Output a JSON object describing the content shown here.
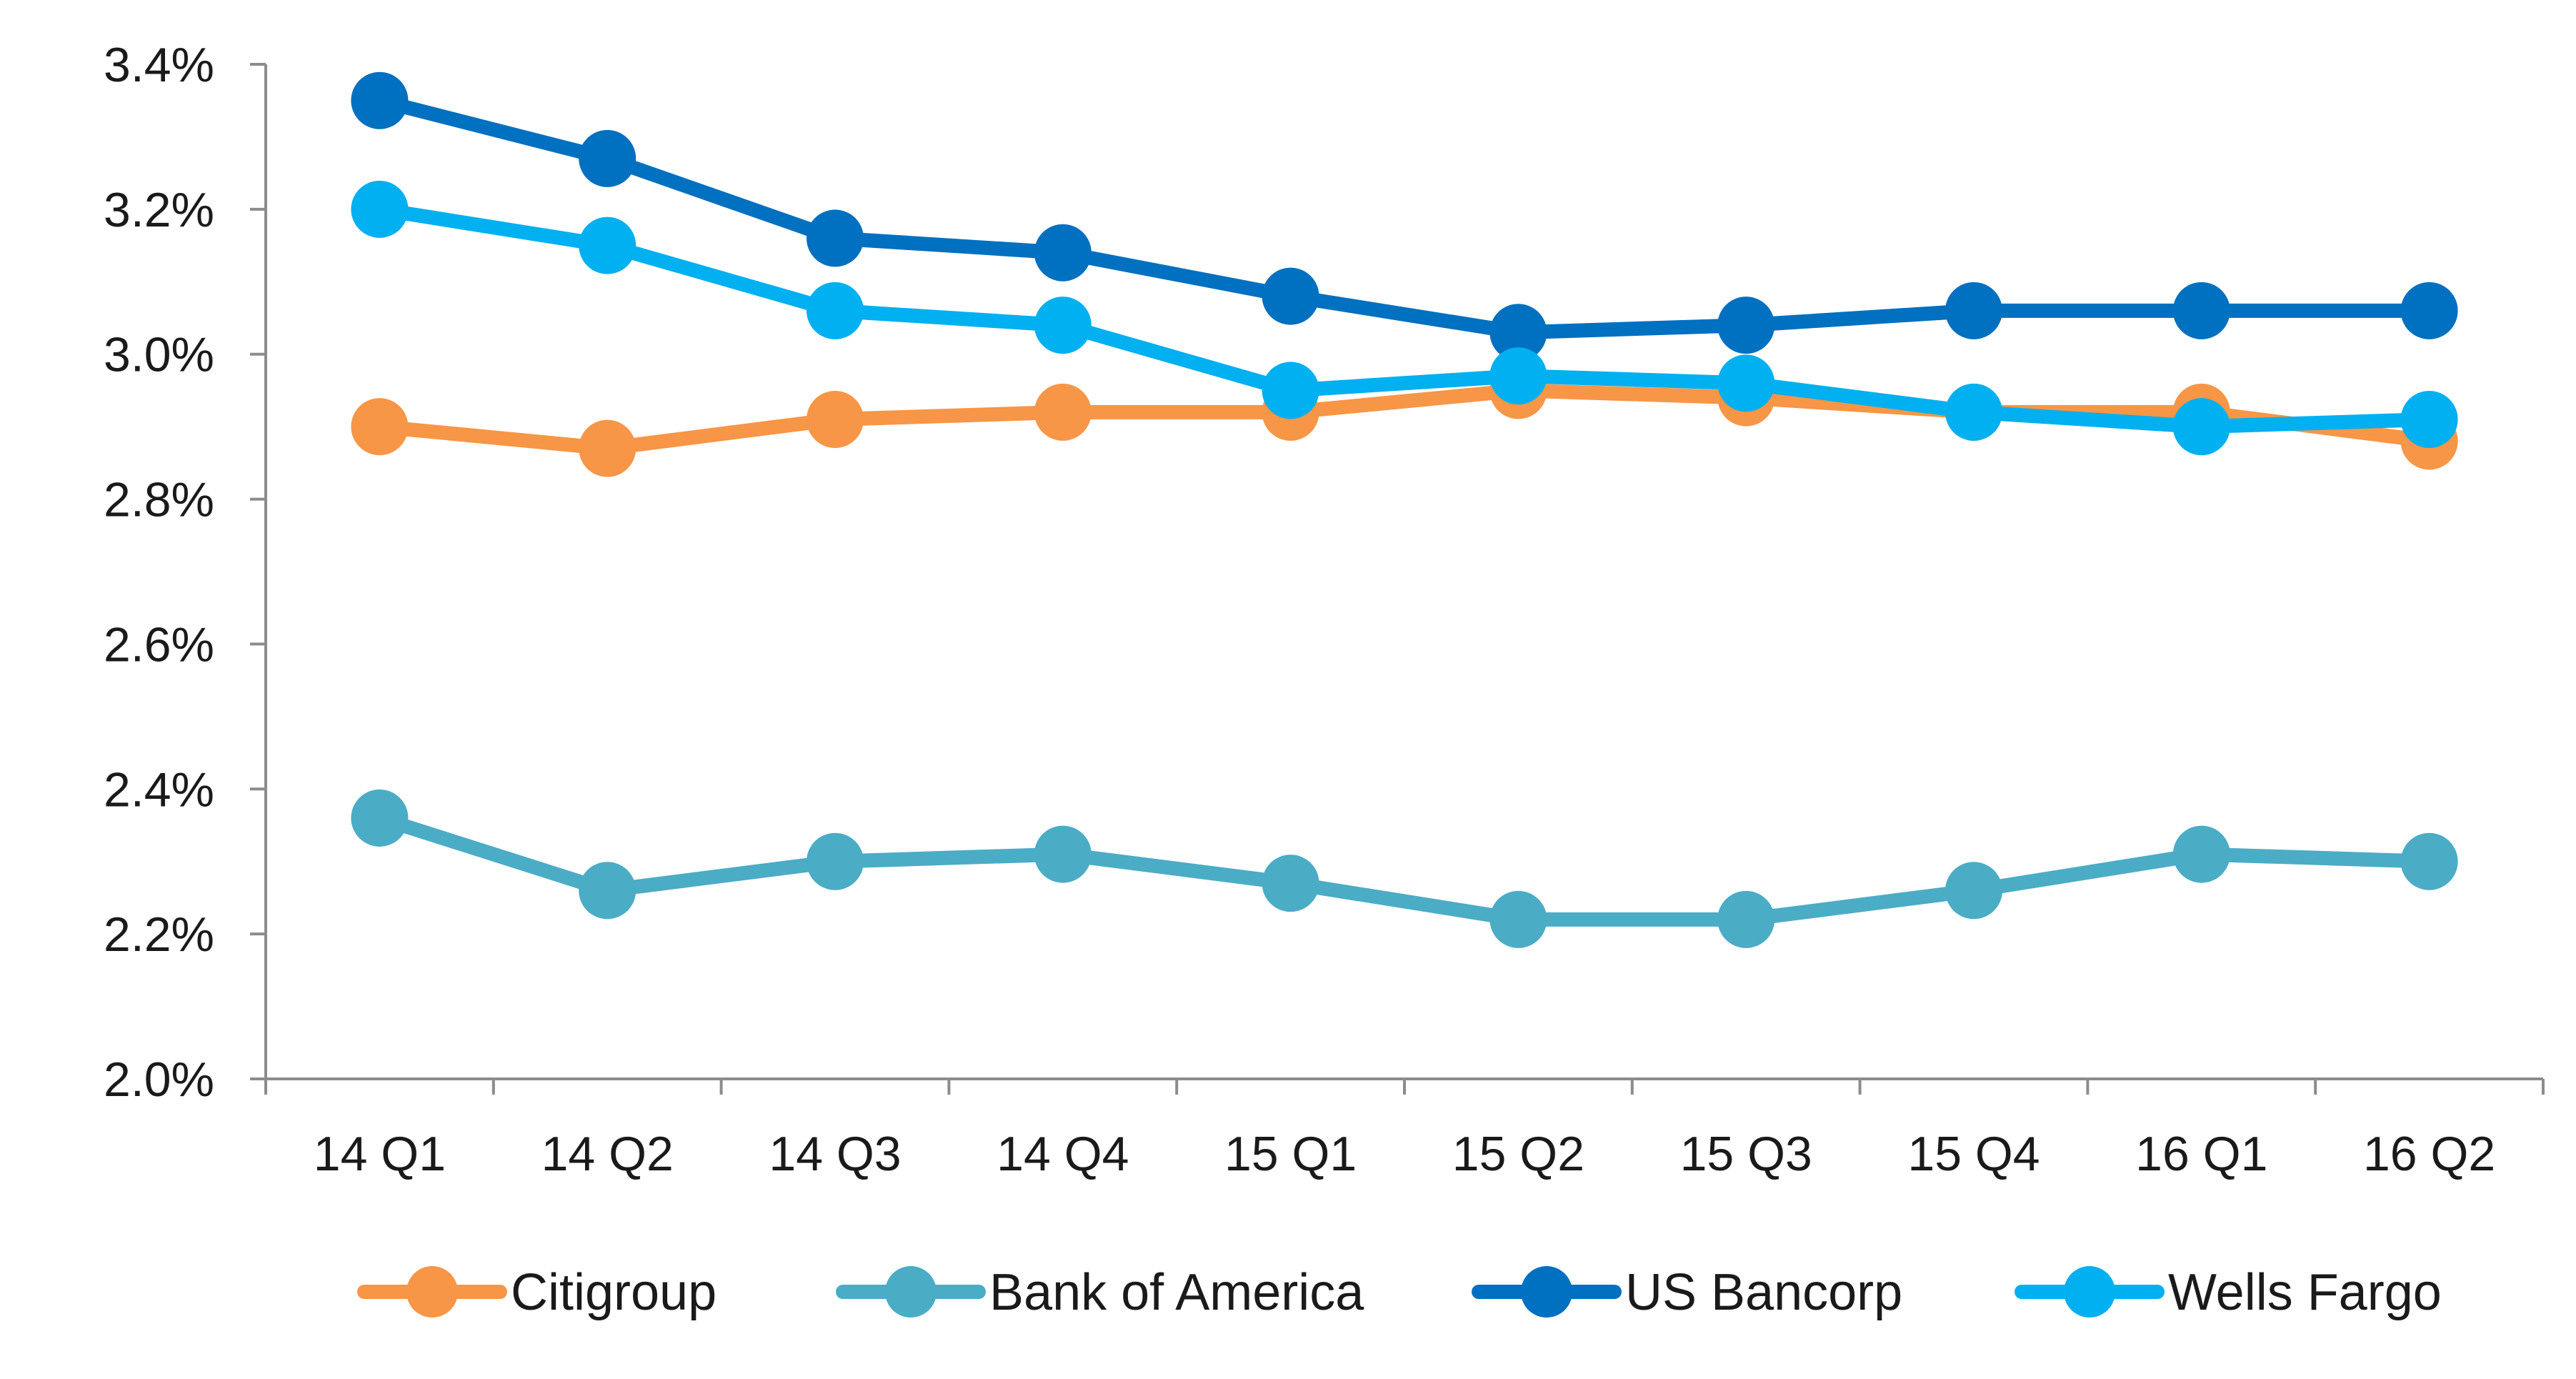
{
  "chart_data": {
    "type": "line",
    "categories": [
      "14 Q1",
      "14 Q2",
      "14 Q3",
      "14 Q4",
      "15 Q1",
      "15 Q2",
      "15 Q3",
      "15 Q4",
      "16 Q1",
      "16 Q2"
    ],
    "ylim": [
      2.0,
      3.4
    ],
    "yticks": [
      2.0,
      2.2,
      2.4,
      2.6,
      2.8,
      3.0,
      3.2,
      3.4
    ],
    "ytick_labels": [
      "2.0%",
      "2.2%",
      "2.4%",
      "2.6%",
      "2.8%",
      "3.0%",
      "3.2%",
      "3.4%"
    ],
    "grid": false,
    "legend_position": "bottom",
    "series": [
      {
        "name": "Citigroup",
        "color": "#F79646",
        "values": [
          2.9,
          2.87,
          2.91,
          2.92,
          2.92,
          2.95,
          2.94,
          2.92,
          2.92,
          2.88
        ]
      },
      {
        "name": "Bank of America",
        "color": "#4BACC6",
        "values": [
          2.36,
          2.26,
          2.3,
          2.31,
          2.27,
          2.22,
          2.22,
          2.26,
          2.31,
          2.3
        ]
      },
      {
        "name": "US Bancorp",
        "color": "#0070C0",
        "values": [
          3.35,
          3.27,
          3.16,
          3.14,
          3.08,
          3.03,
          3.04,
          3.06,
          3.06,
          3.06
        ]
      },
      {
        "name": "Wells Fargo",
        "color": "#00B0F0",
        "values": [
          3.2,
          3.15,
          3.06,
          3.04,
          2.95,
          2.97,
          2.96,
          2.92,
          2.9,
          2.91
        ]
      }
    ]
  }
}
